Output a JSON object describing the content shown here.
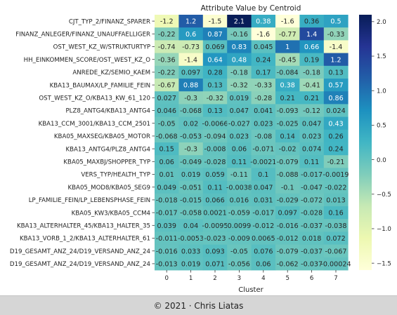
{
  "chart_data": {
    "type": "heatmap",
    "title": "Attribute Value by Centroid",
    "xlabel": "Cluster",
    "ylabel": "",
    "x_categories": [
      "0",
      "1",
      "2",
      "3",
      "4",
      "5",
      "6",
      "7"
    ],
    "y_categories": [
      "CJT_TYP_2/FINANZ_SPARER",
      "FINANZ_ANLEGER/FINANZ_UNAUFFAELLIGER",
      "OST_WEST_KZ_W/STRUKTURTYP",
      "HH_EINKOMMEN_SCORE/OST_WEST_KZ_O",
      "ANREDE_KZ/SEMIO_KAEM",
      "KBA13_BAUMAX/LP_FAMILIE_FEIN",
      "OST_WEST_KZ_O/KBA13_KW_61_120",
      "PLZ8_ANTG4/KBA13_ANTG4",
      "KBA13_CCM_3001/KBA13_CCM_2501",
      "KBA05_MAXSEG/KBA05_MOTOR",
      "KBA13_ANTG4/PLZ8_ANTG4",
      "KBA05_MAXBJ/SHOPPER_TYP",
      "VERS_TYP/HEALTH_TYP",
      "KBA05_MOD8/KBA05_SEG9",
      "LP_FAMILIE_FEIN/LP_LEBENSPHASE_FEIN",
      "KBA05_KW3/KBA05_CCM4",
      "KBA13_ALTERHALTER_45/KBA13_HALTER_35",
      "KBA13_VORB_1_2/KBA13_ALTERHALTER_61",
      "D19_GESAMT_ANZ_24/D19_VERSAND_ANZ_24",
      "D19_GESAMT_ANZ_24/D19_VERSAND_ANZ_24"
    ],
    "values": [
      [
        -1.2,
        1.2,
        -1.5,
        2.1,
        0.38,
        -1.6,
        0.36,
        0.5
      ],
      [
        -0.22,
        0.6,
        0.87,
        -0.16,
        -1.6,
        -0.77,
        1.4,
        -0.33
      ],
      [
        -0.74,
        -0.73,
        0.069,
        0.83,
        0.045,
        1,
        0.66,
        -1.4
      ],
      [
        -0.36,
        -1.4,
        0.64,
        0.48,
        0.24,
        -0.45,
        0.19,
        1.2
      ],
      [
        -0.22,
        0.097,
        0.28,
        -0.18,
        0.17,
        -0.084,
        -0.18,
        0.13
      ],
      [
        -0.67,
        0.88,
        0.13,
        -0.32,
        -0.33,
        0.38,
        -0.41,
        0.57
      ],
      [
        0.027,
        -0.3,
        -0.32,
        0.019,
        -0.28,
        0.21,
        0.21,
        0.86
      ],
      [
        0.046,
        -0.068,
        0.13,
        0.047,
        0.041,
        -0.093,
        -0.12,
        0.024
      ],
      [
        -0.05,
        0.02,
        -0.0066,
        -0.027,
        0.023,
        -0.025,
        0.047,
        0.43
      ],
      [
        -0.068,
        -0.053,
        -0.094,
        0.023,
        -0.08,
        0.14,
        0.023,
        0.26
      ],
      [
        0.15,
        -0.3,
        -0.008,
        0.06,
        -0.071,
        -0.02,
        0.074,
        0.24
      ],
      [
        0.06,
        -0.049,
        -0.028,
        0.11,
        -0.0021,
        -0.079,
        0.11,
        -0.21
      ],
      [
        0.01,
        0.019,
        0.059,
        -0.11,
        0.1,
        -0.088,
        -0.017,
        -0.0019
      ],
      [
        0.049,
        -0.051,
        0.11,
        -0.0038,
        0.047,
        -0.1,
        -0.047,
        -0.022
      ],
      [
        -0.018,
        -0.015,
        0.066,
        0.016,
        0.031,
        -0.029,
        -0.072,
        0.013
      ],
      [
        -0.017,
        -0.058,
        0.0021,
        -0.059,
        -0.017,
        0.097,
        -0.028,
        0.16
      ],
      [
        0.039,
        0.04,
        -0.0095,
        0.0099,
        -0.012,
        -0.016,
        -0.037,
        -0.038
      ],
      [
        -0.011,
        -0.0053,
        -0.023,
        -0.009,
        0.0065,
        -0.012,
        0.018,
        0.072
      ],
      [
        -0.016,
        0.033,
        0.093,
        -0.05,
        0.076,
        -0.079,
        -0.037,
        -0.067
      ],
      [
        -0.013,
        0.019,
        0.071,
        -0.056,
        0.06,
        -0.062,
        -0.037,
        -0.00024
      ]
    ],
    "value_labels": [
      [
        "-1.2",
        "1.2",
        "-1.5",
        "2.1",
        "0.38",
        "-1.6",
        "0.36",
        "0.5"
      ],
      [
        "-0.22",
        "0.6",
        "0.87",
        "-0.16",
        "-1.6",
        "-0.77",
        "1.4",
        "-0.33"
      ],
      [
        "-0.74",
        "-0.73",
        "0.069",
        "0.83",
        "0.045",
        "1",
        "0.66",
        "-1.4"
      ],
      [
        "-0.36",
        "-1.4",
        "0.64",
        "0.48",
        "0.24",
        "-0.45",
        "0.19",
        "1.2"
      ],
      [
        "-0.22",
        "0.097",
        "0.28",
        "-0.18",
        "0.17",
        "-0.084",
        "-0.18",
        "0.13"
      ],
      [
        "-0.67",
        "0.88",
        "0.13",
        "-0.32",
        "-0.33",
        "0.38",
        "-0.41",
        "0.57"
      ],
      [
        "0.027",
        "-0.3",
        "-0.32",
        "0.019",
        "-0.28",
        "0.21",
        "0.21",
        "0.86"
      ],
      [
        "0.046",
        "-0.068",
        "0.13",
        "0.047",
        "0.041",
        "-0.093",
        "-0.12",
        "0.024"
      ],
      [
        "-0.05",
        "0.02",
        "-0.0066",
        "-0.027",
        "0.023",
        "-0.025",
        "0.047",
        "0.43"
      ],
      [
        "-0.068",
        "-0.053",
        "-0.094",
        "0.023",
        "-0.08",
        "0.14",
        "0.023",
        "0.26"
      ],
      [
        "0.15",
        "-0.3",
        "-0.008",
        "0.06",
        "-0.071",
        "-0.02",
        "0.074",
        "0.24"
      ],
      [
        "0.06",
        "-0.049",
        "-0.028",
        "0.11",
        "-0.0021",
        "-0.079",
        "0.11",
        "-0.21"
      ],
      [
        "0.01",
        "0.019",
        "0.059",
        "-0.11",
        "0.1",
        "-0.088",
        "-0.017",
        "-0.0019"
      ],
      [
        "0.049",
        "-0.051",
        "0.11",
        "-0.0038",
        "0.047",
        "-0.1",
        "-0.047",
        "-0.022"
      ],
      [
        "-0.018",
        "-0.015",
        "0.066",
        "0.016",
        "0.031",
        "-0.029",
        "-0.072",
        "0.013"
      ],
      [
        "-0.017",
        "-0.058",
        "0.0021",
        "-0.059",
        "-0.017",
        "0.097",
        "-0.028",
        "0.16"
      ],
      [
        "0.039",
        "0.04",
        "-0.0095",
        "0.0099",
        "-0.012",
        "-0.016",
        "-0.037",
        "-0.038"
      ],
      [
        "-0.011",
        "-0.0053",
        "-0.023",
        "-0.009",
        "0.0065",
        "-0.012",
        "0.018",
        "0.072"
      ],
      [
        "-0.016",
        "0.033",
        "0.093",
        "-0.05",
        "0.076",
        "-0.079",
        "-0.037",
        "-0.067"
      ],
      [
        "-0.013",
        "0.019",
        "0.071",
        "-0.056",
        "0.06",
        "-0.062",
        "-0.037",
        "-0.00024"
      ]
    ],
    "colorbar": {
      "colormap": "YlGnBu",
      "range": [
        -1.6,
        2.1
      ],
      "tick_values": [
        2.0,
        1.5,
        1.0,
        0.5,
        0.0,
        -0.5,
        -1.0,
        -1.5
      ],
      "tick_labels": [
        "2.0",
        "1.5",
        "1.0",
        "0.5",
        "0.0",
        "−0.5",
        "−1.0",
        "−1.5"
      ],
      "stops": [
        "#ffffd9",
        "#edf8b1",
        "#c7e9b4",
        "#7fcdbb",
        "#41b6c4",
        "#1d91c0",
        "#225ea8",
        "#253494",
        "#081d58"
      ]
    }
  },
  "footer": {
    "text": "© 2021 · Chris Liatas"
  }
}
